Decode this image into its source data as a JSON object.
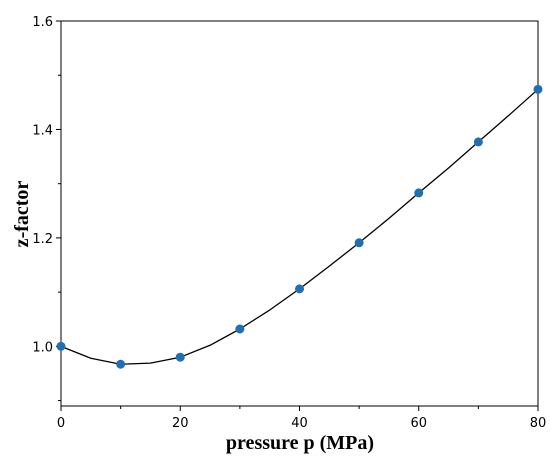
{
  "chart_data": {
    "type": "line",
    "xlabel": "pressure p (MPa)",
    "ylabel": "z-factor",
    "xlim": [
      0,
      80
    ],
    "ylim": [
      0.89,
      1.6
    ],
    "x_ticks": [
      "0",
      "20",
      "40",
      "60",
      "80"
    ],
    "y_ticks": [
      "1.0",
      "1.2",
      "1.4",
      "1.6"
    ],
    "grid": false,
    "series": [
      {
        "style": "line",
        "color": "#000000",
        "x": [
          0,
          5,
          10,
          15,
          20,
          25,
          30,
          35,
          40,
          45,
          50,
          55,
          60,
          65,
          70,
          75,
          80
        ],
        "y": [
          1.0,
          0.978,
          0.967,
          0.969,
          0.98,
          1.002,
          1.032,
          1.067,
          1.106,
          1.148,
          1.191,
          1.236,
          1.283,
          1.329,
          1.377,
          1.425,
          1.474
        ]
      },
      {
        "style": "markers",
        "color": "#1f6fb2",
        "x": [
          0,
          10,
          20,
          30,
          40,
          50,
          60,
          70,
          80
        ],
        "y": [
          1.0,
          0.967,
          0.98,
          1.032,
          1.106,
          1.191,
          1.283,
          1.377,
          1.474
        ]
      }
    ]
  }
}
